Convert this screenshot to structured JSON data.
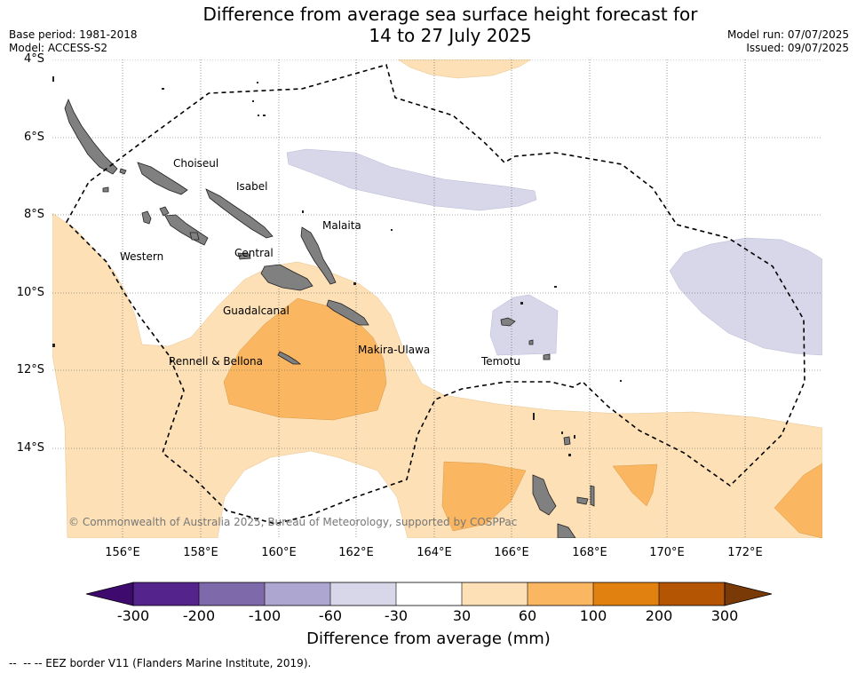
{
  "title": {
    "line1": "Difference from average sea surface height forecast for",
    "line2": "14 to 27 July 2025"
  },
  "meta": {
    "base_period": "Base period: 1981-2018",
    "model": "Model: ACCESS-S2",
    "model_run": "Model run: 07/07/2025",
    "issued": "Issued: 09/07/2025"
  },
  "axes": {
    "lat_labels": [
      "4°S",
      "6°S",
      "8°S",
      "10°S",
      "12°S",
      "14°S"
    ],
    "lon_labels": [
      "156°E",
      "158°E",
      "160°E",
      "162°E",
      "164°E",
      "166°E",
      "168°E",
      "170°E",
      "172°E"
    ]
  },
  "regions": {
    "choiseul": "Choiseul",
    "isabel": "Isabel",
    "malaita": "Malaita",
    "western": "Western",
    "central": "Central",
    "guadalcanal": "Guadalcanal",
    "rennell": "Rennell & Bellona",
    "makira": "Makira-Ulawa",
    "temotu": "Temotu"
  },
  "copyright": "© Commonwealth of Australia 2025, Bureau of Meteorology, supported by COSPPac",
  "colorbar": {
    "title": "Difference from average (mm)",
    "ticks": [
      "-300",
      "-200",
      "-100",
      "-60",
      "-30",
      "30",
      "60",
      "100",
      "200",
      "300"
    ],
    "colors": [
      "#3f0a6e",
      "#54238c",
      "#7e6aaa",
      "#ada6d0",
      "#d7d7e9",
      "#ffffff",
      "#fde0b6",
      "#fab660",
      "#e1810f",
      "#b45504",
      "#7a3a07"
    ]
  },
  "legend_note": "-- EEZ border V11 (Flanders Marine Institute, 2019).",
  "colors": {
    "land": "#808080",
    "light_orange": "#fde0b6",
    "mid_orange": "#fab660",
    "light_purple": "#d7d7e9"
  }
}
